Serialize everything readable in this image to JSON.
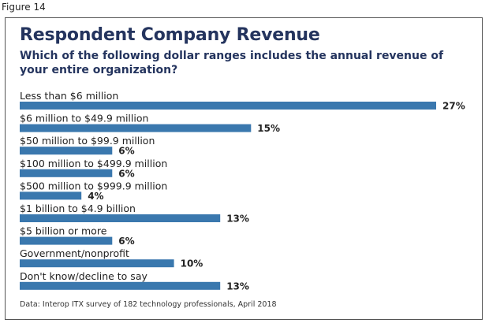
{
  "figure_label": "Figure 14",
  "chart_data": {
    "type": "bar",
    "orientation": "horizontal",
    "title": "Respondent Company Revenue",
    "subtitle": "Which of the following dollar ranges includes the annual revenue of your entire organization?",
    "categories": [
      "Less than $6 million",
      "$6 million to $49.9 million",
      "$50 million to $99.9 million",
      "$100 million to $499.9 million",
      "$500 million to $999.9 million",
      "$1 billion to $4.9 billion",
      "$5 billion or more",
      "Government/nonprofit",
      "Don't know/decline to say"
    ],
    "values": [
      27,
      15,
      6,
      6,
      4,
      13,
      6,
      10,
      13
    ],
    "value_labels": [
      "27%",
      "15%",
      "6%",
      "6%",
      "4%",
      "13%",
      "6%",
      "10%",
      "13%"
    ],
    "unit": "%",
    "xlim": [
      0,
      27
    ],
    "bar_color": "#3a78ae",
    "title_color": "#24345e",
    "grid": false,
    "legend": "none",
    "source": "Data: Interop ITX survey of 182 technology professionals, April 2018"
  }
}
